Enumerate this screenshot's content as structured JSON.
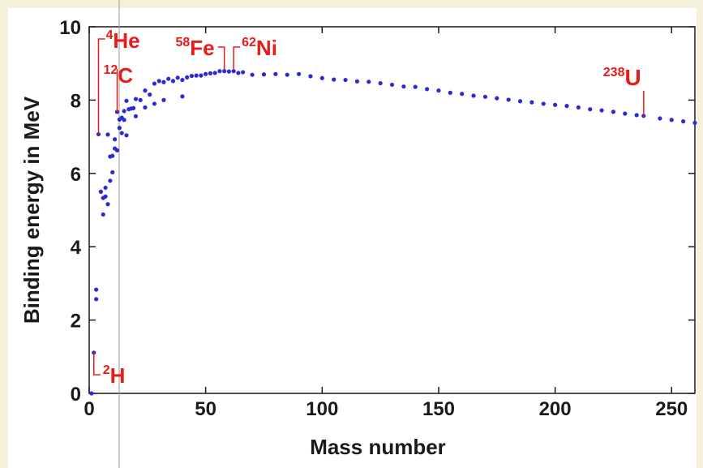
{
  "chart_data": {
    "type": "scatter",
    "xlabel": "Mass number",
    "ylabel": "Binding energy in MeV",
    "xlim": [
      0,
      260
    ],
    "ylim": [
      0,
      10
    ],
    "xticks": [
      "0",
      "50",
      "100",
      "150",
      "200",
      "250"
    ],
    "yticks": [
      "0",
      "2",
      "4",
      "6",
      "8",
      "10"
    ],
    "grid": false,
    "point_color": "#2a2ad6",
    "annotation_color": "#e81b1b",
    "series": [
      {
        "points": [
          [
            1,
            0.0
          ],
          [
            2,
            1.11
          ],
          [
            3,
            2.57
          ],
          [
            3,
            2.83
          ],
          [
            4,
            7.07
          ],
          [
            5,
            5.5
          ],
          [
            6,
            5.33
          ],
          [
            6,
            4.88
          ],
          [
            7,
            5.61
          ],
          [
            7,
            5.37
          ],
          [
            8,
            5.16
          ],
          [
            8,
            7.06
          ],
          [
            9,
            6.46
          ],
          [
            9,
            5.8
          ],
          [
            10,
            6.48
          ],
          [
            10,
            6.03
          ],
          [
            11,
            6.93
          ],
          [
            11,
            6.68
          ],
          [
            12,
            7.68
          ],
          [
            12,
            6.63
          ],
          [
            13,
            7.47
          ],
          [
            13,
            7.24
          ],
          [
            14,
            7.52
          ],
          [
            14,
            7.1
          ],
          [
            15,
            7.7
          ],
          [
            15,
            7.46
          ],
          [
            16,
            7.98
          ],
          [
            16,
            7.04
          ],
          [
            17,
            7.75
          ],
          [
            18,
            7.77
          ],
          [
            19,
            7.78
          ],
          [
            20,
            8.03
          ],
          [
            20,
            7.56
          ],
          [
            22,
            8.0
          ],
          [
            24,
            8.26
          ],
          [
            24,
            7.8
          ],
          [
            26,
            8.15
          ],
          [
            28,
            8.45
          ],
          [
            28,
            7.9
          ],
          [
            30,
            8.52
          ],
          [
            32,
            8.49
          ],
          [
            32,
            8.0
          ],
          [
            34,
            8.58
          ],
          [
            36,
            8.52
          ],
          [
            38,
            8.61
          ],
          [
            40,
            8.55
          ],
          [
            40,
            8.1
          ],
          [
            42,
            8.62
          ],
          [
            44,
            8.66
          ],
          [
            46,
            8.67
          ],
          [
            48,
            8.67
          ],
          [
            50,
            8.71
          ],
          [
            52,
            8.73
          ],
          [
            54,
            8.74
          ],
          [
            56,
            8.79
          ],
          [
            58,
            8.79
          ],
          [
            60,
            8.78
          ],
          [
            62,
            8.79
          ],
          [
            64,
            8.74
          ],
          [
            66,
            8.76
          ],
          [
            70,
            8.69
          ],
          [
            75,
            8.7
          ],
          [
            80,
            8.71
          ],
          [
            85,
            8.69
          ],
          [
            90,
            8.71
          ],
          [
            95,
            8.65
          ],
          [
            100,
            8.6
          ],
          [
            105,
            8.56
          ],
          [
            110,
            8.55
          ],
          [
            115,
            8.51
          ],
          [
            120,
            8.5
          ],
          [
            125,
            8.46
          ],
          [
            130,
            8.42
          ],
          [
            135,
            8.37
          ],
          [
            140,
            8.36
          ],
          [
            145,
            8.3
          ],
          [
            150,
            8.26
          ],
          [
            155,
            8.2
          ],
          [
            160,
            8.17
          ],
          [
            165,
            8.12
          ],
          [
            170,
            8.09
          ],
          [
            175,
            8.05
          ],
          [
            180,
            8.01
          ],
          [
            185,
            7.97
          ],
          [
            190,
            7.94
          ],
          [
            195,
            7.9
          ],
          [
            200,
            7.87
          ],
          [
            205,
            7.84
          ],
          [
            210,
            7.8
          ],
          [
            215,
            7.75
          ],
          [
            220,
            7.72
          ],
          [
            225,
            7.68
          ],
          [
            230,
            7.63
          ],
          [
            235,
            7.59
          ],
          [
            238,
            7.57
          ],
          [
            245,
            7.5
          ],
          [
            250,
            7.46
          ],
          [
            255,
            7.42
          ],
          [
            260,
            7.38
          ]
        ]
      }
    ],
    "annotations": [
      {
        "mass": "4",
        "symbol": "He",
        "x": 4,
        "y": 7.07
      },
      {
        "mass": "12",
        "symbol": "C",
        "x": 12,
        "y": 7.68
      },
      {
        "mass": "58",
        "symbol": "Fe",
        "x": 58,
        "y": 8.79
      },
      {
        "mass": "62",
        "symbol": "Ni",
        "x": 62,
        "y": 8.79
      },
      {
        "mass": "238",
        "symbol": "U",
        "x": 238,
        "y": 7.57
      },
      {
        "mass": "2",
        "symbol": "H",
        "x": 2,
        "y": 1.11
      }
    ]
  }
}
